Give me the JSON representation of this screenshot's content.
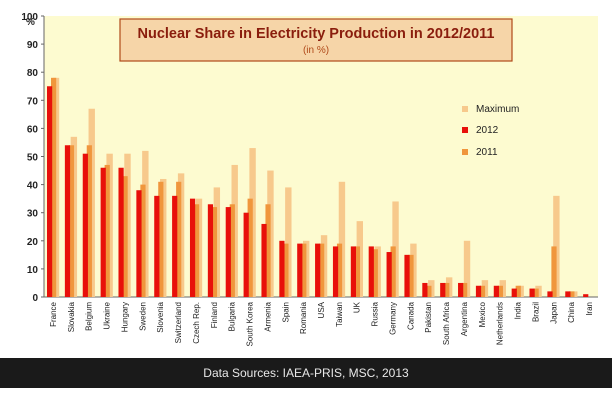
{
  "chart_data": {
    "type": "bar",
    "title": "Nuclear Share in Electricity Production in 2012/2011",
    "subtitle": "(in %)",
    "ylabel": "%",
    "xlabel": "",
    "ylim": [
      0,
      100
    ],
    "yticks": [
      0,
      10,
      20,
      30,
      40,
      50,
      60,
      70,
      80,
      90,
      100
    ],
    "grid": false,
    "legend_position": "right",
    "categories": [
      "France",
      "Slovakia",
      "Belgium",
      "Ukraine",
      "Hungary",
      "Sweden",
      "Slovenia",
      "Switzerland",
      "Czech Rep.",
      "Finland",
      "Bulgaria",
      "South Korea",
      "Armenia",
      "Spain",
      "Romania",
      "USA",
      "Taiwan",
      "UK",
      "Russia",
      "Germany",
      "Canada",
      "Pakistan",
      "South Africa",
      "Argentina",
      "Mexico",
      "Netherlands",
      "India",
      "Brazil",
      "Japan",
      "China",
      "Iran"
    ],
    "series": [
      {
        "name": "Maximum",
        "color": "#f7c98c",
        "values": [
          78,
          57,
          67,
          51,
          51,
          52,
          42,
          44,
          35,
          39,
          47,
          53,
          45,
          39,
          20,
          22,
          41,
          27,
          18,
          34,
          19,
          6,
          7,
          20,
          6,
          6,
          4,
          4,
          36,
          2,
          0
        ]
      },
      {
        "name": "2012",
        "color": "#e8100a",
        "values": [
          75,
          54,
          51,
          46,
          46,
          38,
          36,
          36,
          35,
          33,
          32,
          30,
          26,
          20,
          19,
          19,
          18,
          18,
          18,
          16,
          15,
          5,
          5,
          5,
          4,
          4,
          3,
          3,
          2,
          2,
          1
        ]
      },
      {
        "name": "2011",
        "color": "#f0963c",
        "values": [
          78,
          54,
          54,
          47,
          43,
          40,
          41,
          41,
          33,
          32,
          33,
          35,
          33,
          19,
          19,
          19,
          19,
          18,
          17,
          18,
          15,
          4,
          5,
          5,
          4,
          4,
          4,
          3,
          18,
          2,
          0
        ]
      }
    ]
  },
  "footer": {
    "source": "Data Sources: IAEA-PRIS, MSC, 2013"
  }
}
